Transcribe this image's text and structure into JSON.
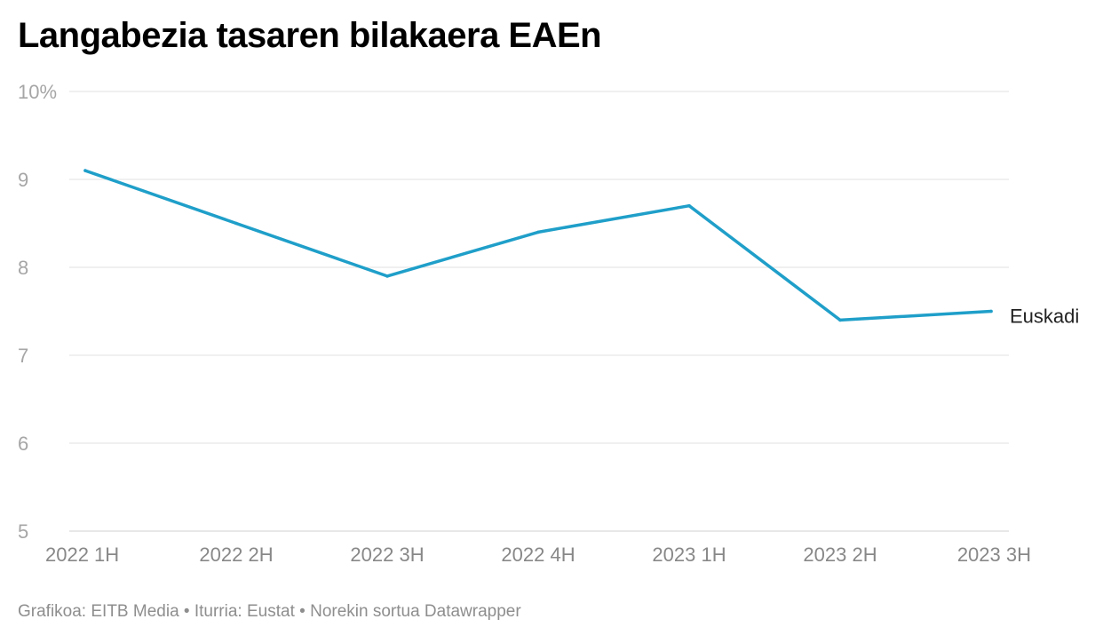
{
  "chart_data": {
    "type": "line",
    "title": "Langabezia tasaren bilakaera EAEn",
    "categories": [
      "2022 1H",
      "2022 2H",
      "2022 3H",
      "2022 4H",
      "2023 1H",
      "2023 2H",
      "2023 3H"
    ],
    "series": [
      {
        "name": "Euskadi",
        "values": [
          9.1,
          8.5,
          7.9,
          8.4,
          8.7,
          7.4,
          7.5
        ],
        "color": "#1f9fc9"
      }
    ],
    "y_ticks": [
      "5",
      "6",
      "7",
      "8",
      "9",
      "10%"
    ],
    "ylim": [
      5,
      10
    ],
    "grid": true,
    "xlabel": "",
    "ylabel": ""
  },
  "footer": {
    "credit_label": "Grafikoa:",
    "credit_value": "EITB Media",
    "source_label": "Iturria:",
    "source_value": "Eustat",
    "tool": "Norekin sortua Datawrapper",
    "separator": "•"
  }
}
